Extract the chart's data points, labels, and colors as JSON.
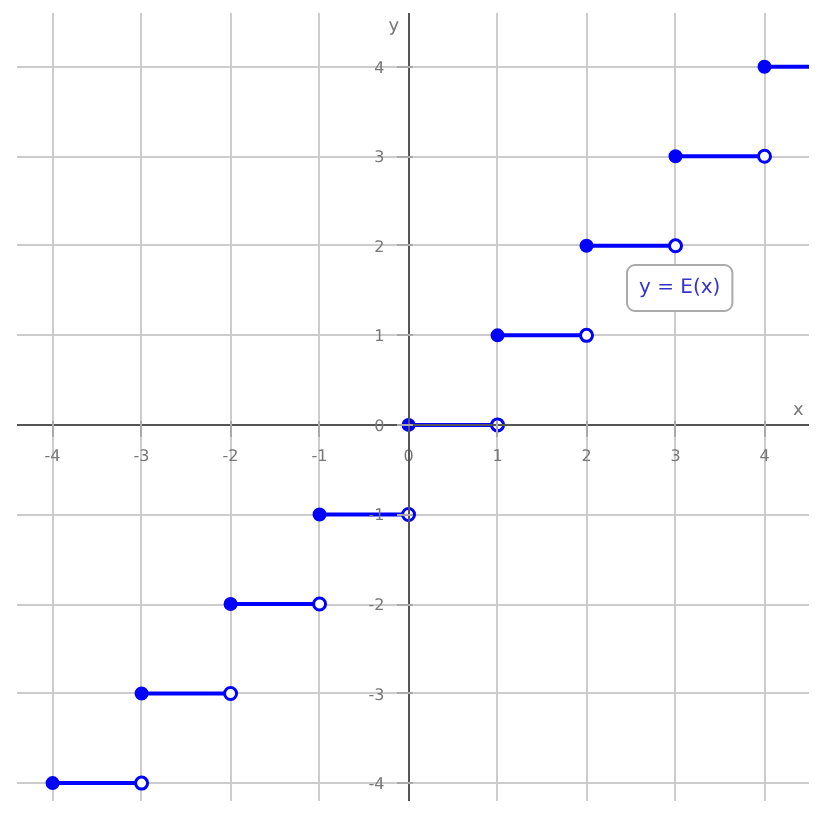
{
  "chart_data": {
    "type": "line",
    "xlabel": "x",
    "ylabel": "y",
    "xlim": [
      -4.4,
      4.5
    ],
    "ylim": [
      -4.2,
      4.6
    ],
    "xticks": [
      -4,
      -3,
      -2,
      -1,
      0,
      1,
      2,
      3,
      4
    ],
    "yticks": [
      -4,
      -3,
      -2,
      -1,
      0,
      1,
      2,
      3,
      4
    ],
    "grid": true,
    "line_style": "solid",
    "marker": "circle",
    "annotations": [
      "y = E(x)"
    ],
    "series": [
      {
        "color": "#0000ff",
        "x": [
          -4,
          -3
        ],
        "values": [
          -4,
          -4
        ]
      },
      {
        "color": "#0000ff",
        "x": [
          -3,
          -2
        ],
        "values": [
          -3,
          -3
        ]
      },
      {
        "color": "#0000ff",
        "x": [
          -2,
          -1
        ],
        "values": [
          -2,
          -2
        ]
      },
      {
        "color": "#0000ff",
        "x": [
          -1,
          0
        ],
        "values": [
          -1,
          -1
        ]
      },
      {
        "color": "#0000ff",
        "x": [
          0,
          1
        ],
        "values": [
          0,
          0
        ]
      },
      {
        "color": "#0000ff",
        "x": [
          1,
          2
        ],
        "values": [
          1,
          1
        ]
      },
      {
        "color": "#0000ff",
        "x": [
          2,
          3
        ],
        "values": [
          2,
          2
        ]
      },
      {
        "color": "#0000ff",
        "x": [
          3,
          4
        ],
        "values": [
          3,
          3
        ]
      },
      {
        "color": "#0000ff",
        "x": [
          4,
          4.5
        ],
        "values": [
          4,
          4
        ]
      }
    ]
  }
}
